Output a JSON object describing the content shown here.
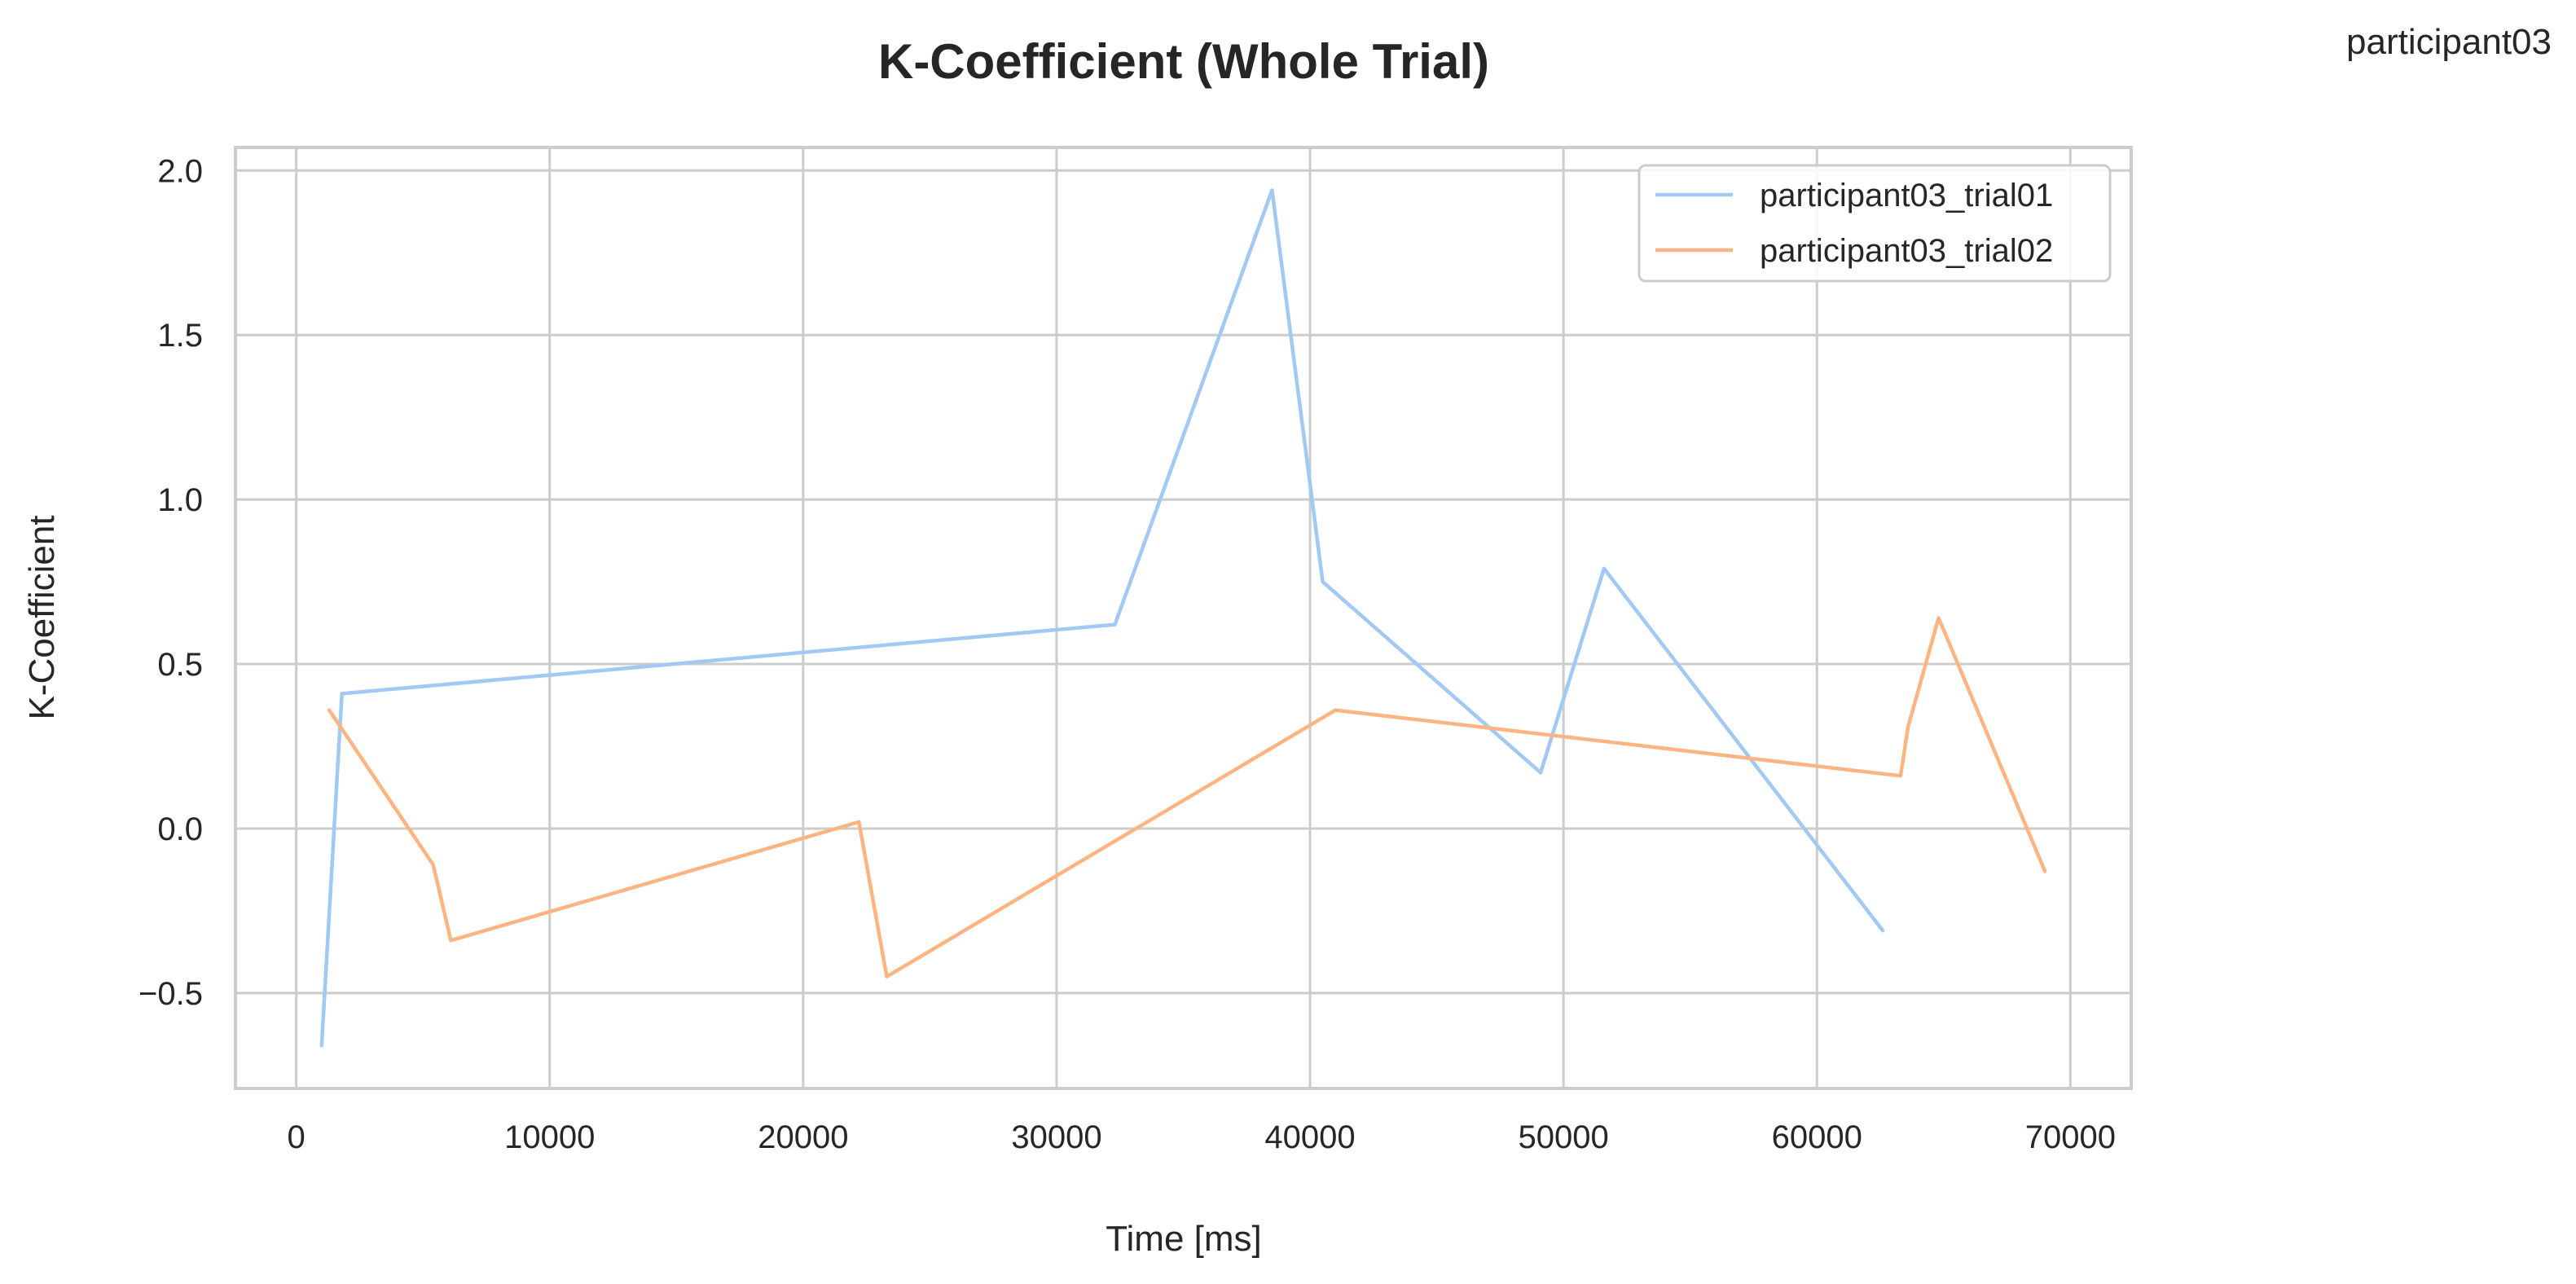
{
  "corner_label": "participant03",
  "chart_data": {
    "type": "line",
    "title": "K-Coefficient (Whole Trial)",
    "xlabel": "Time [ms]",
    "ylabel": "K-Coefficient",
    "xlim": [
      -2400,
      72400
    ],
    "ylim": [
      -0.79,
      2.07
    ],
    "xticks": [
      0,
      10000,
      20000,
      30000,
      40000,
      50000,
      60000,
      70000
    ],
    "yticks": [
      -0.5,
      0.0,
      0.5,
      1.0,
      1.5,
      2.0
    ],
    "ytick_labels": [
      "−0.5",
      "0.0",
      "0.5",
      "1.0",
      "1.5",
      "2.0"
    ],
    "grid": true,
    "legend_position": "top-right",
    "series": [
      {
        "name": "participant03_trial01",
        "color": "#a1c9f4",
        "x": [
          1000,
          1800,
          32300,
          38500,
          40500,
          49100,
          51600,
          62600
        ],
        "y": [
          -0.66,
          0.41,
          0.62,
          1.94,
          0.75,
          0.17,
          0.79,
          -0.31
        ]
      },
      {
        "name": "participant03_trial02",
        "color": "#ffb482",
        "x": [
          1300,
          5400,
          6100,
          22200,
          23300,
          41000,
          63300,
          63600,
          64800,
          69000
        ],
        "y": [
          0.36,
          -0.11,
          -0.34,
          0.02,
          -0.45,
          0.36,
          0.16,
          0.31,
          0.64,
          -0.13
        ]
      }
    ]
  }
}
